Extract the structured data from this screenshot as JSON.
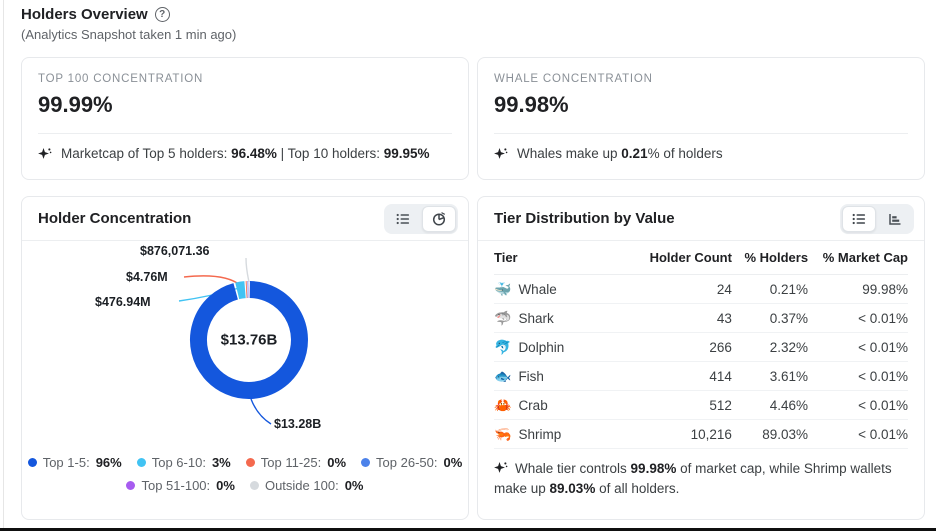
{
  "page": {
    "title": "Holders Overview",
    "subtitle": "(Analytics Snapshot taken 1 min ago)",
    "help_glyph": "?"
  },
  "stat_cards": [
    {
      "label": "TOP 100 CONCENTRATION",
      "value": "99.99%",
      "note": {
        "p1": "Marketcap of Top 5 holders: ",
        "b1": "96.48%",
        "p2": " | Top 10 holders: ",
        "b2": "99.95%"
      }
    },
    {
      "label": "WHALE CONCENTRATION",
      "value": "99.98%",
      "note": {
        "p1": "Whales make up ",
        "b1": "0.21",
        "p2": "% of holders",
        "b2": ""
      }
    }
  ],
  "concentration_card": {
    "title": "Holder Concentration",
    "donut": {
      "center_label": "$13.76B",
      "segments": [
        {
          "label": "Top 1-5",
          "pct_label": "96%",
          "display_pct": 96,
          "color": "#1457dd",
          "callout": "$13.28B"
        },
        {
          "label": "Top 6-10",
          "pct_label": "3%",
          "display_pct": 3,
          "color": "#41c3f3",
          "callout": "$476.94M"
        },
        {
          "label": "Top 11-25",
          "pct_label": "0%",
          "display_pct": 0.45,
          "color": "#f4694e",
          "callout": "$4.76M"
        },
        {
          "label": "Top 26-50",
          "pct_label": "0%",
          "display_pct": 0.2,
          "color": "#4c82ea",
          "callout": ""
        },
        {
          "label": "Top 51-100",
          "pct_label": "0%",
          "display_pct": 0.2,
          "color": "#a75cf0",
          "callout": ""
        },
        {
          "label": "Outside 100",
          "pct_label": "0%",
          "display_pct": 0.15,
          "color": "#d6dade",
          "callout": "$876,071.36"
        }
      ]
    }
  },
  "tier_card": {
    "title": "Tier Distribution by Value",
    "headers": [
      "Tier",
      "Holder Count",
      "% Holders",
      "% Market Cap"
    ],
    "rows": [
      {
        "icon": "🐳",
        "tier": "Whale",
        "count": "24",
        "holders_pct": "0.21%",
        "mcap_pct": "99.98%"
      },
      {
        "icon": "🦈",
        "tier": "Shark",
        "count": "43",
        "holders_pct": "0.37%",
        "mcap_pct": "< 0.01%"
      },
      {
        "icon": "🐬",
        "tier": "Dolphin",
        "count": "266",
        "holders_pct": "2.32%",
        "mcap_pct": "< 0.01%"
      },
      {
        "icon": "🐟",
        "tier": "Fish",
        "count": "414",
        "holders_pct": "3.61%",
        "mcap_pct": "< 0.01%"
      },
      {
        "icon": "🦀",
        "tier": "Crab",
        "count": "512",
        "holders_pct": "4.46%",
        "mcap_pct": "< 0.01%"
      },
      {
        "icon": "🦐",
        "tier": "Shrimp",
        "count": "10,216",
        "holders_pct": "89.03%",
        "mcap_pct": "< 0.01%"
      }
    ],
    "note": {
      "p1": "Whale tier controls ",
      "b1": "99.98%",
      "p2": " of market cap, while Shrimp wallets make up ",
      "b2": "89.03%",
      "p3": " of all holders."
    }
  },
  "chart_data": [
    {
      "type": "pie",
      "title": "Holder Concentration",
      "categories": [
        "Top 1-5",
        "Top 6-10",
        "Top 11-25",
        "Top 26-50",
        "Top 51-100",
        "Outside 100"
      ],
      "values": [
        96,
        3,
        0,
        0,
        0,
        0
      ],
      "colors": [
        "#1457dd",
        "#41c3f3",
        "#f4694e",
        "#4c82ea",
        "#a75cf0",
        "#d6dade"
      ],
      "center_label": "$13.76B",
      "callouts": {
        "Top 1-5": "$13.28B",
        "Top 6-10": "$476.94M",
        "Top 11-25": "$4.76M",
        "Outside 100": "$876,071.36"
      },
      "legend_position": "bottom",
      "donut": true
    },
    {
      "type": "table",
      "title": "Tier Distribution by Value",
      "columns": [
        "Tier",
        "Holder Count",
        "% Holders",
        "% Market Cap"
      ],
      "rows": [
        [
          "Whale",
          "24",
          "0.21%",
          "99.98%"
        ],
        [
          "Shark",
          "43",
          "0.37%",
          "< 0.01%"
        ],
        [
          "Dolphin",
          "266",
          "2.32%",
          "< 0.01%"
        ],
        [
          "Fish",
          "414",
          "3.61%",
          "< 0.01%"
        ],
        [
          "Crab",
          "512",
          "4.46%",
          "< 0.01%"
        ],
        [
          "Shrimp",
          "10,216",
          "89.03%",
          "< 0.01%"
        ]
      ]
    }
  ]
}
